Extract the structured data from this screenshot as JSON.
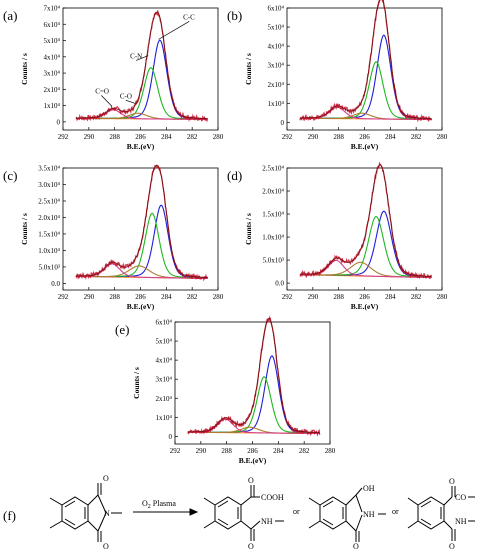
{
  "chart_data": [
    {
      "type": "line",
      "panel_label": "(a)",
      "xlabel": "B.E.(eV)",
      "ylabel": "Counts / s",
      "x_reversed": true,
      "xlim": [
        292,
        280
      ],
      "xticks": [
        292,
        290,
        288,
        286,
        284,
        282,
        280
      ],
      "ylim": [
        -0.5,
        7
      ],
      "ytick_values": [
        0,
        1,
        2,
        3,
        4,
        5,
        6,
        7
      ],
      "yticks": [
        "0",
        "1x10⁴",
        "2x10⁴",
        "3x10⁴",
        "4x10⁴",
        "5x10⁴",
        "6x10⁴",
        "7x10⁴"
      ],
      "components": [
        {
          "name": "C-C",
          "center": 284.5,
          "amp": 4.85,
          "width": 0.55
        },
        {
          "name": "C-N",
          "center": 285.2,
          "amp": 3.15,
          "width": 0.55
        },
        {
          "name": "C-O",
          "center": 286.2,
          "amp": 0.35,
          "width": 0.7
        },
        {
          "name": "C=O",
          "center": 288.1,
          "amp": 0.55,
          "width": 0.6
        }
      ],
      "baseline": 0.15,
      "annotations": [
        "C-C",
        "C-N",
        "C-O",
        "C=O"
      ]
    },
    {
      "type": "line",
      "panel_label": "(b)",
      "xlabel": "B.E.(eV)",
      "ylabel": "Counts / s",
      "x_reversed": true,
      "xlim": [
        292,
        280
      ],
      "xticks": [
        292,
        290,
        288,
        286,
        284,
        282,
        280
      ],
      "ylim": [
        -0.4,
        6
      ],
      "ytick_values": [
        0,
        1,
        2,
        3,
        4,
        5,
        6
      ],
      "yticks": [
        "0",
        "1x10⁴",
        "2x10⁴",
        "3x10⁴",
        "4x10⁴",
        "5x10⁴",
        "6x10⁴"
      ],
      "components": [
        {
          "name": "C-C",
          "center": 284.5,
          "amp": 4.4,
          "width": 0.55
        },
        {
          "name": "C-N",
          "center": 285.1,
          "amp": 3.0,
          "width": 0.55
        },
        {
          "name": "C-O",
          "center": 286.2,
          "amp": 0.3,
          "width": 0.7
        },
        {
          "name": "C=O",
          "center": 288.1,
          "amp": 0.6,
          "width": 0.6
        }
      ],
      "baseline": 0.15
    },
    {
      "type": "line",
      "panel_label": "(c)",
      "xlabel": "B.E.(eV)",
      "ylabel": "Counts / s",
      "x_reversed": true,
      "xlim": [
        292,
        280
      ],
      "xticks": [
        292,
        290,
        288,
        286,
        284,
        282,
        280
      ],
      "ylim": [
        -0.2,
        3.5
      ],
      "ytick_values": [
        0,
        0.5,
        1.0,
        1.5,
        2.0,
        2.5,
        3.0,
        3.5
      ],
      "yticks": [
        "0.0",
        "5.0x10³",
        "1.0x10⁴",
        "1.5x10⁴",
        "2.0x10⁴",
        "2.5x10⁴",
        "3.0x10⁴",
        "3.5x10⁴"
      ],
      "components": [
        {
          "name": "C-C",
          "center": 284.4,
          "amp": 2.2,
          "width": 0.55
        },
        {
          "name": "C-N",
          "center": 285.1,
          "amp": 1.95,
          "width": 0.55
        },
        {
          "name": "C-O",
          "center": 286.1,
          "amp": 0.35,
          "width": 0.8
        },
        {
          "name": "C=O",
          "center": 288.2,
          "amp": 0.4,
          "width": 0.6
        }
      ],
      "baseline": 0.15
    },
    {
      "type": "line",
      "panel_label": "(d)",
      "xlabel": "B.E.(eV)",
      "ylabel": "Counts / s",
      "x_reversed": true,
      "xlim": [
        292,
        280
      ],
      "xticks": [
        292,
        290,
        288,
        286,
        284,
        282,
        280
      ],
      "ylim": [
        -0.15,
        2.5
      ],
      "ytick_values": [
        0,
        0.5,
        1.0,
        1.5,
        2.0,
        2.5
      ],
      "yticks": [
        "0.0",
        "5.0x10³",
        "1.0x10⁴",
        "1.5x10⁴",
        "2.0x10⁴",
        "2.5x10⁴"
      ],
      "components": [
        {
          "name": "C-C",
          "center": 284.5,
          "amp": 1.42,
          "width": 0.6
        },
        {
          "name": "C-N",
          "center": 285.1,
          "amp": 1.3,
          "width": 0.6
        },
        {
          "name": "C-O",
          "center": 286.3,
          "amp": 0.3,
          "width": 0.8
        },
        {
          "name": "C=O",
          "center": 288.2,
          "amp": 0.33,
          "width": 0.6
        }
      ],
      "baseline": 0.12
    },
    {
      "type": "line",
      "panel_label": "(e)",
      "xlabel": "B.E.(eV)",
      "ylabel": "Counts / s",
      "x_reversed": true,
      "xlim": [
        292,
        280
      ],
      "xticks": [
        292,
        290,
        288,
        286,
        284,
        282,
        280
      ],
      "ylim": [
        -0.4,
        6
      ],
      "ytick_values": [
        0,
        1,
        2,
        3,
        4,
        5,
        6
      ],
      "yticks": [
        "0",
        "1x10⁴",
        "2x10⁴",
        "3x10⁴",
        "4x10⁴",
        "5x10⁴",
        "6x10⁴"
      ],
      "components": [
        {
          "name": "C-C",
          "center": 284.5,
          "amp": 4.05,
          "width": 0.55
        },
        {
          "name": "C-N",
          "center": 285.1,
          "amp": 2.95,
          "width": 0.55
        },
        {
          "name": "C-O",
          "center": 286.2,
          "amp": 0.3,
          "width": 0.7
        },
        {
          "name": "C=O",
          "center": 288.1,
          "amp": 0.72,
          "width": 0.6
        }
      ],
      "baseline": 0.15
    }
  ],
  "colors": {
    "data": "#c8102e",
    "envelope": "#7a1010",
    "cc": "#1f1fd6",
    "cn": "#1fb81f",
    "co": "#b07a30",
    "co_double": "#d4408c",
    "baseline": "#ff7f0e"
  },
  "scheme": {
    "panel_label": "(f)",
    "reagent_text": "O",
    "reagent_sub": "2",
    "reagent_suffix": " Plasma",
    "or_text": "or",
    "groups": [
      "COOH",
      "NH",
      "OH",
      "NH",
      "CO",
      "NH"
    ]
  }
}
